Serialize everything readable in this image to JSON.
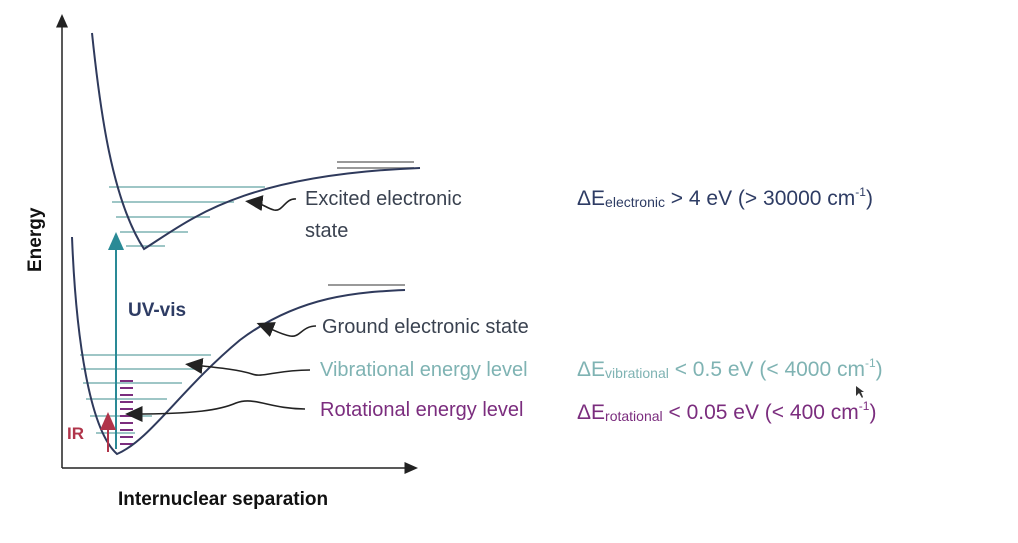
{
  "colors": {
    "curve": "#2f3a5c",
    "electronic": "#2e3c64",
    "vibrational": "#7fb3b3",
    "rotational": "#7b2d7e",
    "uv_arrow": "#2a8a96",
    "ir_label": "#b0344a",
    "axis": "#222222"
  },
  "axes": {
    "x_label": "Internuclear separation",
    "y_label": "Energy"
  },
  "states": {
    "excited": {
      "line1": "Excited electronic",
      "line2": "state"
    },
    "ground": {
      "label": "Ground electronic state"
    }
  },
  "levels": {
    "vibrational": "Vibrational energy level",
    "rotational": "Rotational energy level"
  },
  "transitions": {
    "uv_vis": "UV-vis",
    "ir": "IR"
  },
  "equations": {
    "electronic": {
      "delta": "ΔE",
      "sub": "electronic",
      "rel": " > 4 eV (> 30000 cm",
      "sup": "-1",
      "close": ")"
    },
    "vibrational": {
      "delta": "ΔE",
      "sub": "vibrational",
      "rel": " < 0.5 eV (< 4000 cm",
      "sup": "-1",
      "close": ")"
    },
    "rotational": {
      "delta": "ΔE",
      "sub": "rotational",
      "rel": " < 0.05 eV (< 400 cm",
      "sup": "-1",
      "close": ")"
    }
  }
}
